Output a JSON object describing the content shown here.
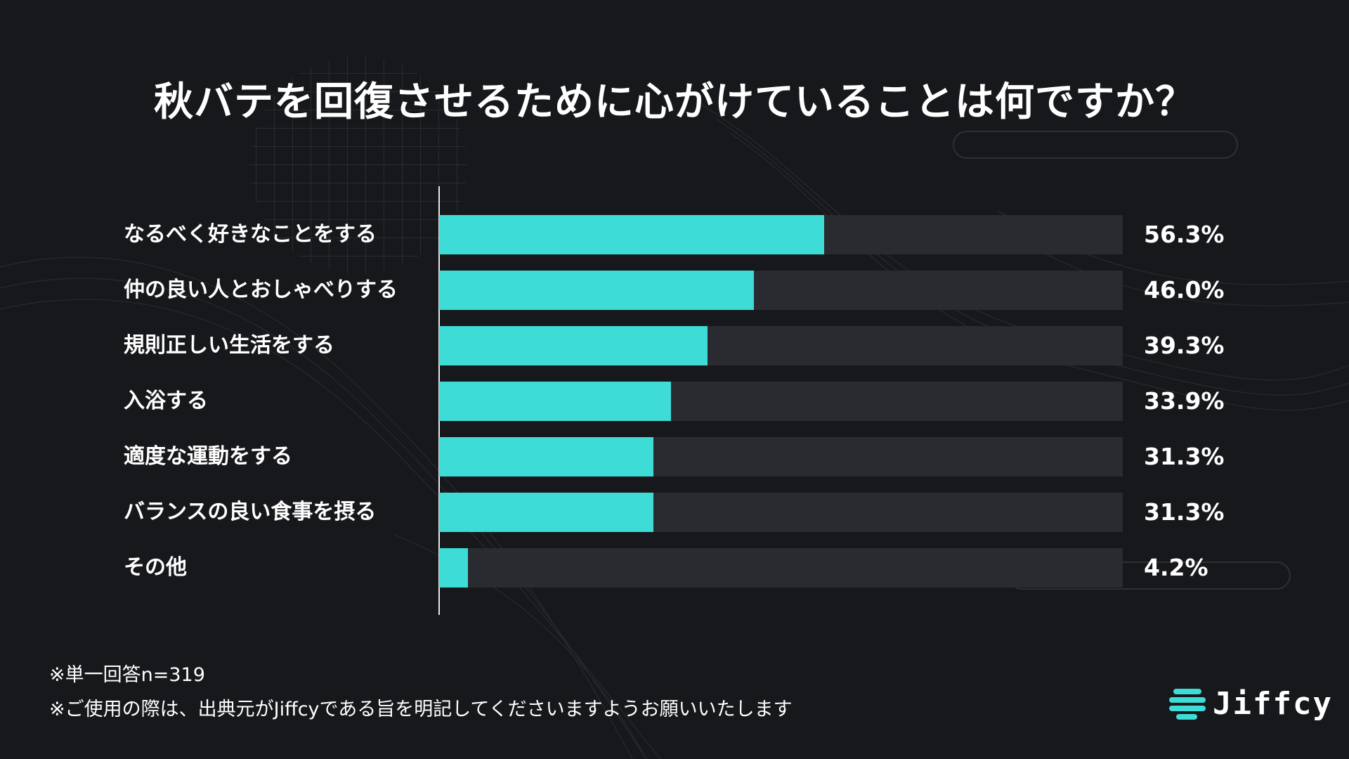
{
  "chart_data": {
    "type": "bar",
    "orientation": "horizontal",
    "title": "秋バテを回復させるために心がけていることは何ですか？",
    "categories": [
      "なるべく好きなことをする",
      "仲の良い人とおしゃべりする",
      "規則正しい生活をする",
      "入浴する",
      "適度な運動をする",
      "バランスの良い食事を摂る",
      "その他"
    ],
    "values": [
      56.3,
      46.0,
      39.3,
      33.9,
      31.3,
      31.3,
      4.2
    ],
    "value_labels": [
      "56.3%",
      "46.0%",
      "39.3%",
      "33.9%",
      "31.3%",
      "31.3%",
      "4.2%"
    ],
    "xlim": [
      0,
      100
    ],
    "unit": "%",
    "grid": false,
    "legend": "none",
    "colors": {
      "bar": "#3ddcd6",
      "track": "#2a2b30",
      "background": "#17181b"
    }
  },
  "notes": [
    "※単一回答n=319",
    "※ご使用の際は、出典元がJiffcyである旨を明記してくださいますようお願いいたします"
  ],
  "logo": {
    "text": "Jiffcy",
    "icon": "jiffcy-logo-icon"
  }
}
